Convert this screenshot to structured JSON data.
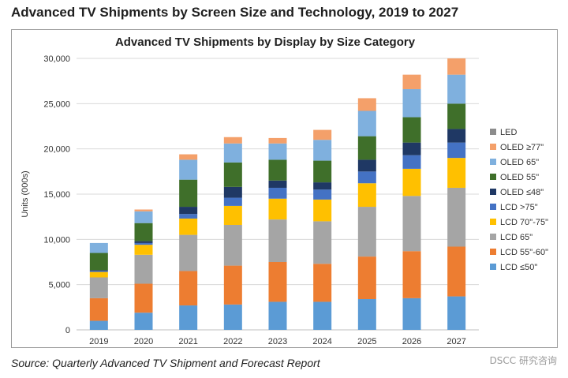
{
  "page": {
    "title": "Advanced TV Shipments by Screen Size and Technology, 2019 to 2027",
    "source": "Source:  Quarterly Advanced TV Shipment and Forecast Report",
    "watermark": "DSCC 研究咨询"
  },
  "colors": {
    "LCD  ≤50\"": "#5b9bd5",
    "LCD 55\"-60\"": "#ed7d31",
    "LCD 65\"": "#a5a5a5",
    "LCD 70\"-75\"": "#ffc000",
    "LCD >75\"": "#4472c4",
    "OLED  ≤48\"": "#1f3864",
    "OLED 55\"": "#3f6f2a",
    "OLED 65\"": "#7fb0de",
    "OLED ≥77\"": "#f4a06a",
    "LED": "#8c8c8c"
  },
  "chart_data": {
    "type": "bar",
    "stacked": true,
    "title": "Advanced TV Shipments by Display by Size Category",
    "xlabel": "",
    "ylabel": "Units (000s)",
    "ylim": [
      0,
      30000
    ],
    "yticks": [
      "0",
      "5,000",
      "10,000",
      "15,000",
      "20,000",
      "25,000",
      "30,000"
    ],
    "grid": true,
    "legend_position": "right",
    "categories": [
      "2019",
      "2020",
      "2021",
      "2022",
      "2023",
      "2024",
      "2025",
      "2026",
      "2027"
    ],
    "series": [
      {
        "name": "LCD  ≤50\"",
        "values": [
          1000,
          1900,
          2700,
          2800,
          3100,
          3100,
          3400,
          3500,
          3700
        ]
      },
      {
        "name": "LCD 55\"-60\"",
        "values": [
          2500,
          3200,
          3800,
          4300,
          4400,
          4200,
          4700,
          5200,
          5500
        ]
      },
      {
        "name": "LCD 65\"",
        "values": [
          2300,
          3200,
          4000,
          4500,
          4700,
          4700,
          5500,
          6100,
          6500
        ]
      },
      {
        "name": "LCD 70\"-75\"",
        "values": [
          600,
          1100,
          1800,
          2100,
          2300,
          2400,
          2600,
          3000,
          3300
        ]
      },
      {
        "name": "LCD >75\"",
        "values": [
          100,
          200,
          500,
          900,
          1200,
          1100,
          1300,
          1500,
          1700
        ]
      },
      {
        "name": "OLED  ≤48\"",
        "values": [
          100,
          200,
          800,
          1200,
          800,
          800,
          1300,
          1400,
          1500
        ]
      },
      {
        "name": "OLED 55\"",
        "values": [
          1900,
          2000,
          3000,
          2700,
          2300,
          2400,
          2600,
          2800,
          2800
        ]
      },
      {
        "name": "OLED 65\"",
        "values": [
          1100,
          1300,
          2200,
          2100,
          1800,
          2300,
          2800,
          3100,
          3200
        ]
      },
      {
        "name": "OLED ≥77\"",
        "values": [
          0,
          200,
          600,
          700,
          600,
          1100,
          1400,
          1600,
          1800
        ]
      },
      {
        "name": "LED",
        "values": [
          0,
          0,
          0,
          0,
          0,
          0,
          0,
          0,
          0
        ]
      }
    ],
    "legend": [
      "LED",
      "OLED ≥77\"",
      "OLED 65\"",
      "OLED 55\"",
      "OLED  ≤48\"",
      "LCD >75\"",
      "LCD 70\"-75\"",
      "LCD 65\"",
      "LCD 55\"-60\"",
      "LCD  ≤50\""
    ]
  }
}
